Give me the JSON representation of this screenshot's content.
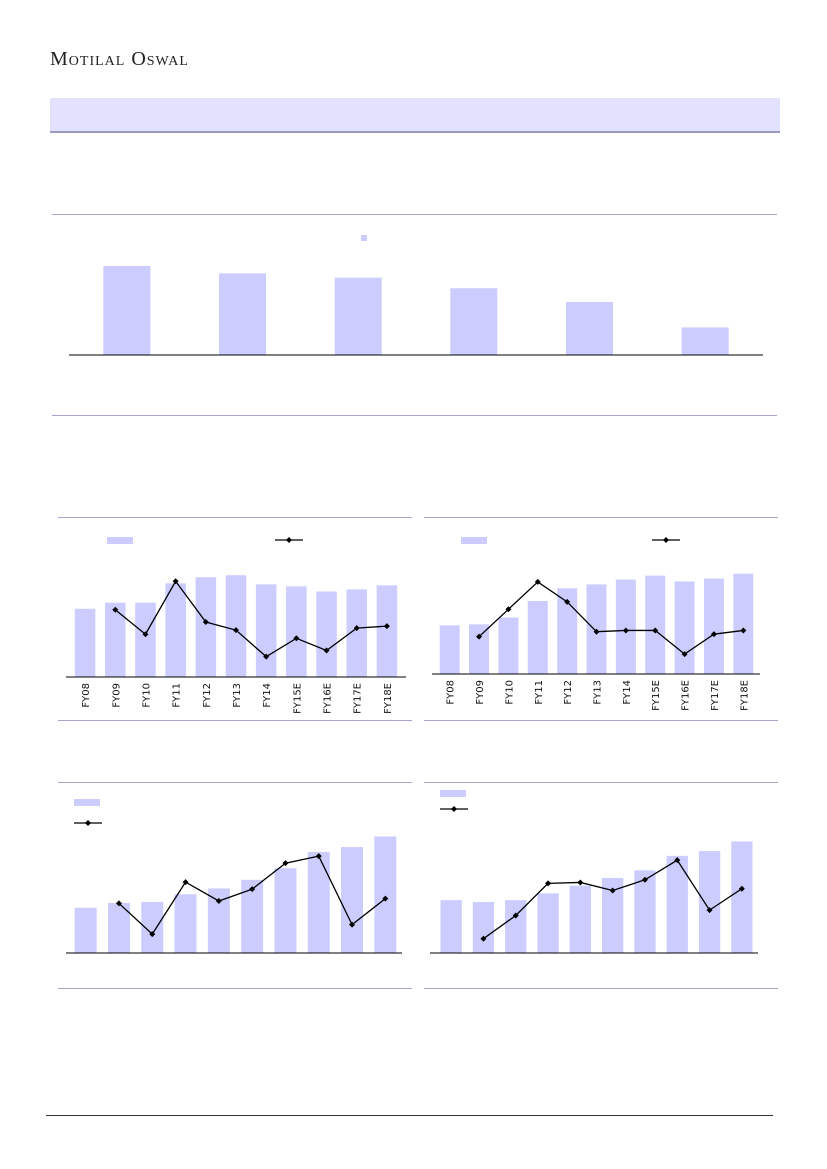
{
  "header": {
    "brand": "Motilal Oswal"
  },
  "colors": {
    "bar": "#ccccff",
    "line": "#000000",
    "rule": "#a6a6cc"
  },
  "chart_data": [
    {
      "type": "bar",
      "categories": [
        "",
        "",
        "",
        "",
        "",
        ""
      ],
      "values": [
        84,
        77,
        73,
        63,
        50,
        26
      ],
      "legend": [
        ""
      ],
      "ylim": [
        0,
        100
      ]
    },
    {
      "type": "bar+line",
      "categories": [
        "FY08",
        "FY09",
        "FY10",
        "FY11",
        "FY12",
        "FY13",
        "FY14",
        "FY15E",
        "FY16E",
        "FY17E",
        "FY18E"
      ],
      "series": [
        {
          "kind": "bar",
          "values": [
            67,
            73,
            73,
            92,
            98,
            100,
            91,
            89,
            84,
            86,
            90
          ]
        },
        {
          "kind": "line",
          "values": [
            null,
            8,
            -4,
            22,
            2,
            -2,
            -15,
            -6,
            -12,
            -1,
            0
          ]
        }
      ],
      "bar_ylim": [
        0,
        110
      ],
      "line_ylim": [
        -25,
        30
      ]
    },
    {
      "type": "bar+line",
      "categories": [
        "FY08",
        "FY09",
        "FY10",
        "FY11",
        "FY12",
        "FY13",
        "FY14",
        "FY15E",
        "FY16E",
        "FY17E",
        "FY18E"
      ],
      "series": [
        {
          "kind": "bar",
          "values": [
            50,
            51,
            58,
            75,
            88,
            92,
            97,
            101,
            95,
            98,
            103
          ]
        },
        {
          "kind": "line",
          "values": [
            null,
            10,
            21,
            32,
            24,
            12,
            12.5,
            12.5,
            3,
            11,
            12.5
          ]
        }
      ],
      "bar_ylim": [
        0,
        115
      ],
      "line_ylim": [
        -5,
        40
      ]
    },
    {
      "type": "bar+line",
      "categories": [
        "",
        "",
        "",
        "",
        "",
        "",
        "",
        "",
        "",
        ""
      ],
      "series": [
        {
          "kind": "bar",
          "values": [
            47,
            52,
            53,
            61,
            67,
            76,
            88,
            105,
            110,
            121
          ]
        },
        {
          "kind": "line",
          "values": [
            null,
            16,
            3,
            25,
            17,
            22,
            33,
            36,
            7,
            18
          ]
        }
      ],
      "bar_ylim": [
        0,
        135
      ],
      "line_ylim": [
        -5,
        50
      ]
    },
    {
      "type": "bar+line",
      "categories": [
        "",
        "",
        "",
        "",
        "",
        "",
        "",
        "",
        "",
        ""
      ],
      "series": [
        {
          "kind": "bar",
          "values": [
            55,
            53,
            55,
            62,
            70,
            78,
            86,
            101,
            106,
            116
          ]
        },
        {
          "kind": "line",
          "values": [
            null,
            -12,
            1,
            19,
            19.5,
            15,
            21,
            32,
            4,
            16
          ]
        }
      ],
      "bar_ylim": [
        0,
        130
      ],
      "line_ylim": [
        -20,
        50
      ]
    }
  ]
}
